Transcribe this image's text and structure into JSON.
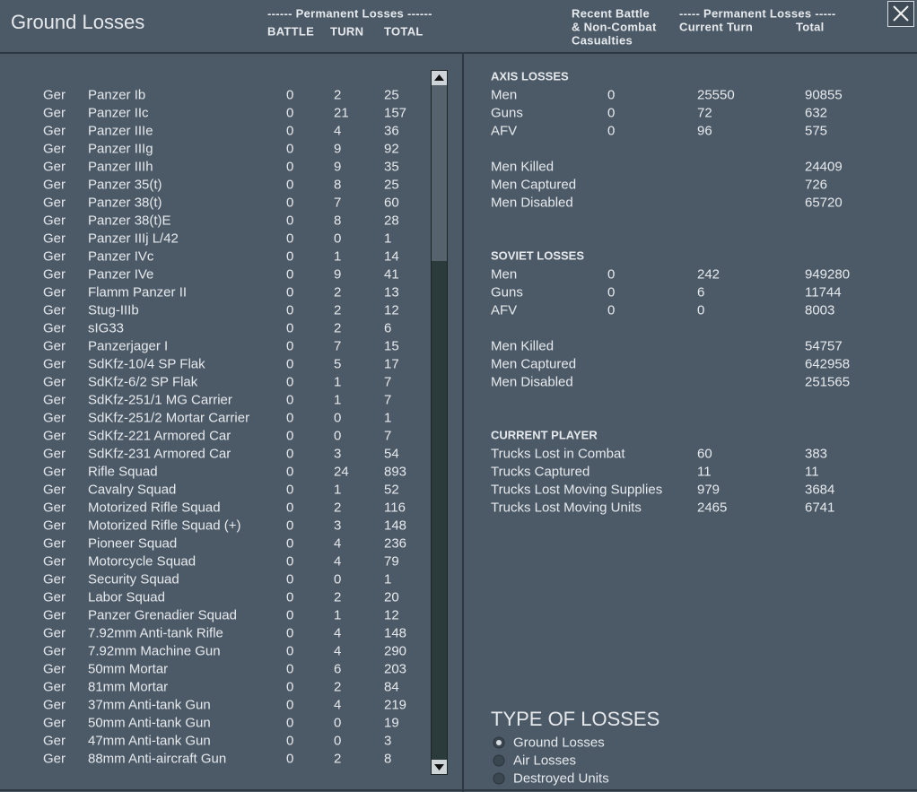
{
  "header": {
    "title": "Ground Losses",
    "left_group": "------ Permanent Losses ------",
    "left_columns": [
      "BATTLE",
      "TURN",
      "TOTAL"
    ],
    "right_recent": [
      "Recent Battle",
      "& Non-Combat",
      "Casualties"
    ],
    "right_group": "----- Permanent Losses -----",
    "right_columns": [
      "Current Turn",
      "Total"
    ]
  },
  "units": [
    [
      "Ger",
      "Panzer Ib",
      0,
      2,
      25
    ],
    [
      "Ger",
      "Panzer IIc",
      0,
      21,
      157
    ],
    [
      "Ger",
      "Panzer IIIe",
      0,
      4,
      36
    ],
    [
      "Ger",
      "Panzer IIIg",
      0,
      9,
      92
    ],
    [
      "Ger",
      "Panzer IIIh",
      0,
      9,
      35
    ],
    [
      "Ger",
      "Panzer 35(t)",
      0,
      8,
      25
    ],
    [
      "Ger",
      "Panzer 38(t)",
      0,
      7,
      60
    ],
    [
      "Ger",
      "Panzer 38(t)E",
      0,
      8,
      28
    ],
    [
      "Ger",
      "Panzer IIIj L/42",
      0,
      0,
      1
    ],
    [
      "Ger",
      "Panzer IVc",
      0,
      1,
      14
    ],
    [
      "Ger",
      "Panzer IVe",
      0,
      9,
      41
    ],
    [
      "Ger",
      "Flamm Panzer II",
      0,
      2,
      13
    ],
    [
      "Ger",
      "Stug-IIIb",
      0,
      2,
      12
    ],
    [
      "Ger",
      "sIG33",
      0,
      2,
      6
    ],
    [
      "Ger",
      "Panzerjager I",
      0,
      7,
      15
    ],
    [
      "Ger",
      "SdKfz-10/4 SP Flak",
      0,
      5,
      17
    ],
    [
      "Ger",
      "SdKfz-6/2 SP Flak",
      0,
      1,
      7
    ],
    [
      "Ger",
      "SdKfz-251/1 MG Carrier",
      0,
      1,
      7
    ],
    [
      "Ger",
      "SdKfz-251/2 Mortar Carrier",
      0,
      0,
      1
    ],
    [
      "Ger",
      "SdKfz-221 Armored Car",
      0,
      0,
      7
    ],
    [
      "Ger",
      "SdKfz-231 Armored Car",
      0,
      3,
      54
    ],
    [
      "Ger",
      "Rifle Squad",
      0,
      24,
      893
    ],
    [
      "Ger",
      "Cavalry Squad",
      0,
      1,
      52
    ],
    [
      "Ger",
      "Motorized Rifle Squad",
      0,
      2,
      116
    ],
    [
      "Ger",
      "Motorized Rifle Squad (+)",
      0,
      3,
      148
    ],
    [
      "Ger",
      "Pioneer Squad",
      0,
      4,
      236
    ],
    [
      "Ger",
      "Motorcycle Squad",
      0,
      4,
      79
    ],
    [
      "Ger",
      "Security Squad",
      0,
      0,
      1
    ],
    [
      "Ger",
      "Labor Squad",
      0,
      2,
      20
    ],
    [
      "Ger",
      "Panzer Grenadier Squad",
      0,
      1,
      12
    ],
    [
      "Ger",
      "7.92mm Anti-tank Rifle",
      0,
      4,
      148
    ],
    [
      "Ger",
      "7.92mm Machine Gun",
      0,
      4,
      290
    ],
    [
      "Ger",
      "50mm Mortar",
      0,
      6,
      203
    ],
    [
      "Ger",
      "81mm Mortar",
      0,
      2,
      84
    ],
    [
      "Ger",
      "37mm Anti-tank Gun",
      0,
      4,
      219
    ],
    [
      "Ger",
      "50mm Anti-tank Gun",
      0,
      0,
      19
    ],
    [
      "Ger",
      "47mm Anti-tank Gun",
      0,
      0,
      3
    ],
    [
      "Ger",
      "88mm Anti-aircraft Gun",
      0,
      2,
      8
    ]
  ],
  "sections": [
    {
      "title": "AXIS LOSSES",
      "rows": [
        {
          "label": "Men",
          "battle": 0,
          "turn": 25550,
          "total": 90855
        },
        {
          "label": "Guns",
          "battle": 0,
          "turn": 72,
          "total": 632
        },
        {
          "label": "AFV",
          "battle": 0,
          "turn": 96,
          "total": 575
        },
        {
          "label": "Men Killed",
          "total": 24409,
          "gap": true
        },
        {
          "label": "Men Captured",
          "total": 726
        },
        {
          "label": "Men Disabled",
          "total": 65720
        }
      ]
    },
    {
      "title": "SOVIET LOSSES",
      "rows": [
        {
          "label": "Men",
          "battle": 0,
          "turn": 242,
          "total": 949280
        },
        {
          "label": "Guns",
          "battle": 0,
          "turn": 6,
          "total": 11744
        },
        {
          "label": "AFV",
          "battle": 0,
          "turn": 0,
          "total": 8003
        },
        {
          "label": "Men Killed",
          "total": 54757,
          "gap": true
        },
        {
          "label": "Men Captured",
          "total": 642958
        },
        {
          "label": "Men Disabled",
          "total": 251565
        }
      ]
    },
    {
      "title": "CURRENT PLAYER",
      "rows": [
        {
          "label": "Trucks Lost in Combat",
          "turn": 60,
          "total": 383
        },
        {
          "label": "Trucks Captured",
          "turn": 11,
          "total": 11
        },
        {
          "label": "Trucks Lost Moving Supplies",
          "turn": 979,
          "total": 3684
        },
        {
          "label": "Trucks Lost Moving Units",
          "turn": 2465,
          "total": 6741
        }
      ]
    }
  ],
  "loss_type": {
    "title": "TYPE OF LOSSES",
    "options": [
      "Ground Losses",
      "Air Losses",
      "Destroyed Units"
    ],
    "selected": 0
  }
}
